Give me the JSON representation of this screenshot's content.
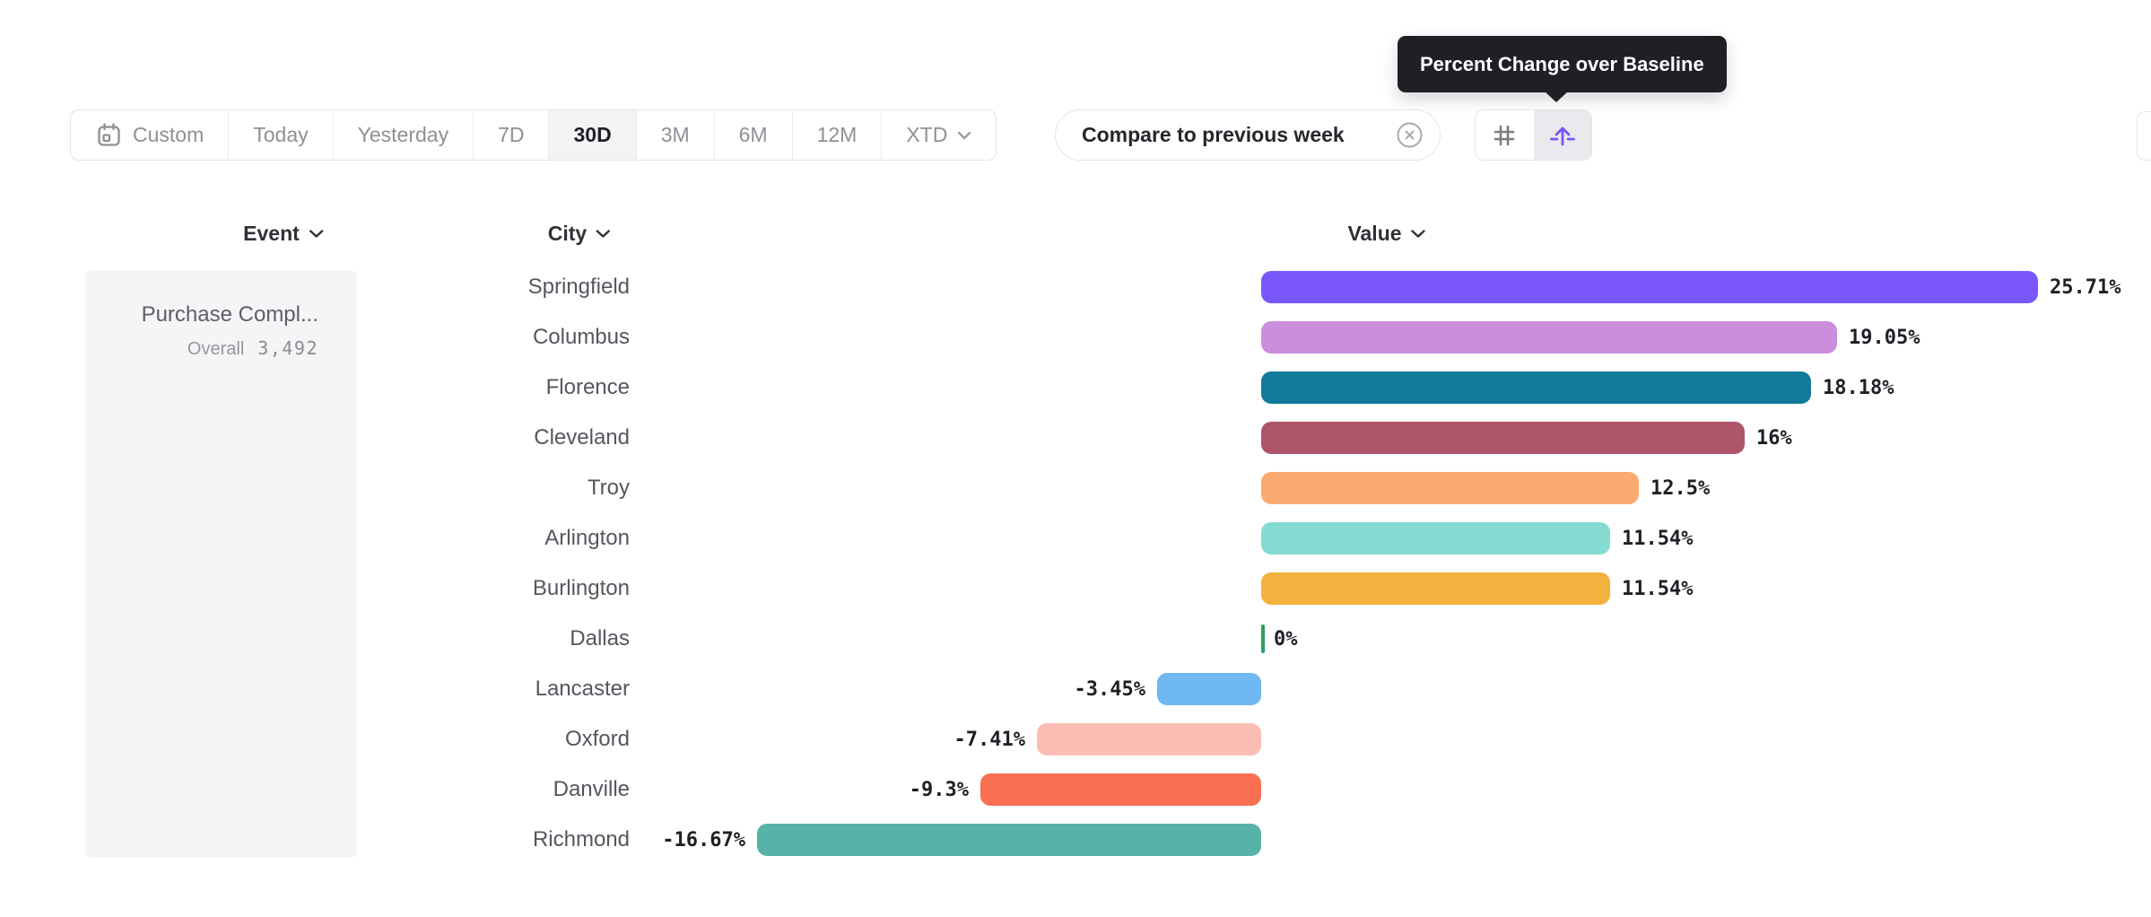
{
  "toolbar": {
    "date_ranges": [
      {
        "label": "Custom",
        "icon": "calendar",
        "selected": false,
        "chevron": false
      },
      {
        "label": "Today",
        "icon": null,
        "selected": false,
        "chevron": false
      },
      {
        "label": "Yesterday",
        "icon": null,
        "selected": false,
        "chevron": false
      },
      {
        "label": "7D",
        "icon": null,
        "selected": false,
        "chevron": false
      },
      {
        "label": "30D",
        "icon": null,
        "selected": true,
        "chevron": false
      },
      {
        "label": "3M",
        "icon": null,
        "selected": false,
        "chevron": false
      },
      {
        "label": "6M",
        "icon": null,
        "selected": false,
        "chevron": false
      },
      {
        "label": "12M",
        "icon": null,
        "selected": false,
        "chevron": false
      },
      {
        "label": "XTD",
        "icon": null,
        "selected": false,
        "chevron": true
      }
    ],
    "compare": {
      "label": "Compare to previous week"
    },
    "view_toggle": {
      "options": [
        {
          "name": "actual-values",
          "icon": "hash-icon",
          "selected": false
        },
        {
          "name": "percent-change",
          "icon": "baseline-arrow-icon",
          "selected": true
        }
      ]
    }
  },
  "tooltip": {
    "text": "Percent Change over Baseline"
  },
  "columns": {
    "event": "Event",
    "city": "City",
    "value": "Value"
  },
  "event_panel": {
    "event_name": "Purchase Compl...",
    "metric_label": "Overall",
    "metric_value": "3,492"
  },
  "chart_data": {
    "type": "bar",
    "orientation": "horizontal",
    "categories": [
      "Springfield",
      "Columbus",
      "Florence",
      "Cleveland",
      "Troy",
      "Arlington",
      "Burlington",
      "Dallas",
      "Lancaster",
      "Oxford",
      "Danville",
      "Richmond"
    ],
    "values": [
      25.71,
      19.05,
      18.18,
      16,
      12.5,
      11.54,
      11.54,
      0,
      -3.45,
      -7.41,
      -9.3,
      -16.67
    ],
    "labels": [
      "25.71%",
      "19.05%",
      "18.18%",
      "16%",
      "12.5%",
      "11.54%",
      "11.54%",
      "0%",
      "-3.45%",
      "-7.41%",
      "-9.3%",
      "-16.67%"
    ],
    "colors": [
      "#7957fa",
      "#cb8edd",
      "#117a9b",
      "#ae5569",
      "#fbaa72",
      "#85dcd3",
      "#f2b23d",
      "#2aa061",
      "#6fb8f1",
      "#fbbdb4",
      "#f96f52",
      "#58b2a7"
    ],
    "zero_marker_color": "#2aa061",
    "xlim": [
      -16.67,
      25.71
    ],
    "value_suffix": "%",
    "grid": false,
    "legend": false
  },
  "accent_colors": {
    "selected_toggle_bg": "#e9e9ee",
    "tooltip_bg": "#1f2026",
    "purple_accent": "#7a55f5"
  }
}
